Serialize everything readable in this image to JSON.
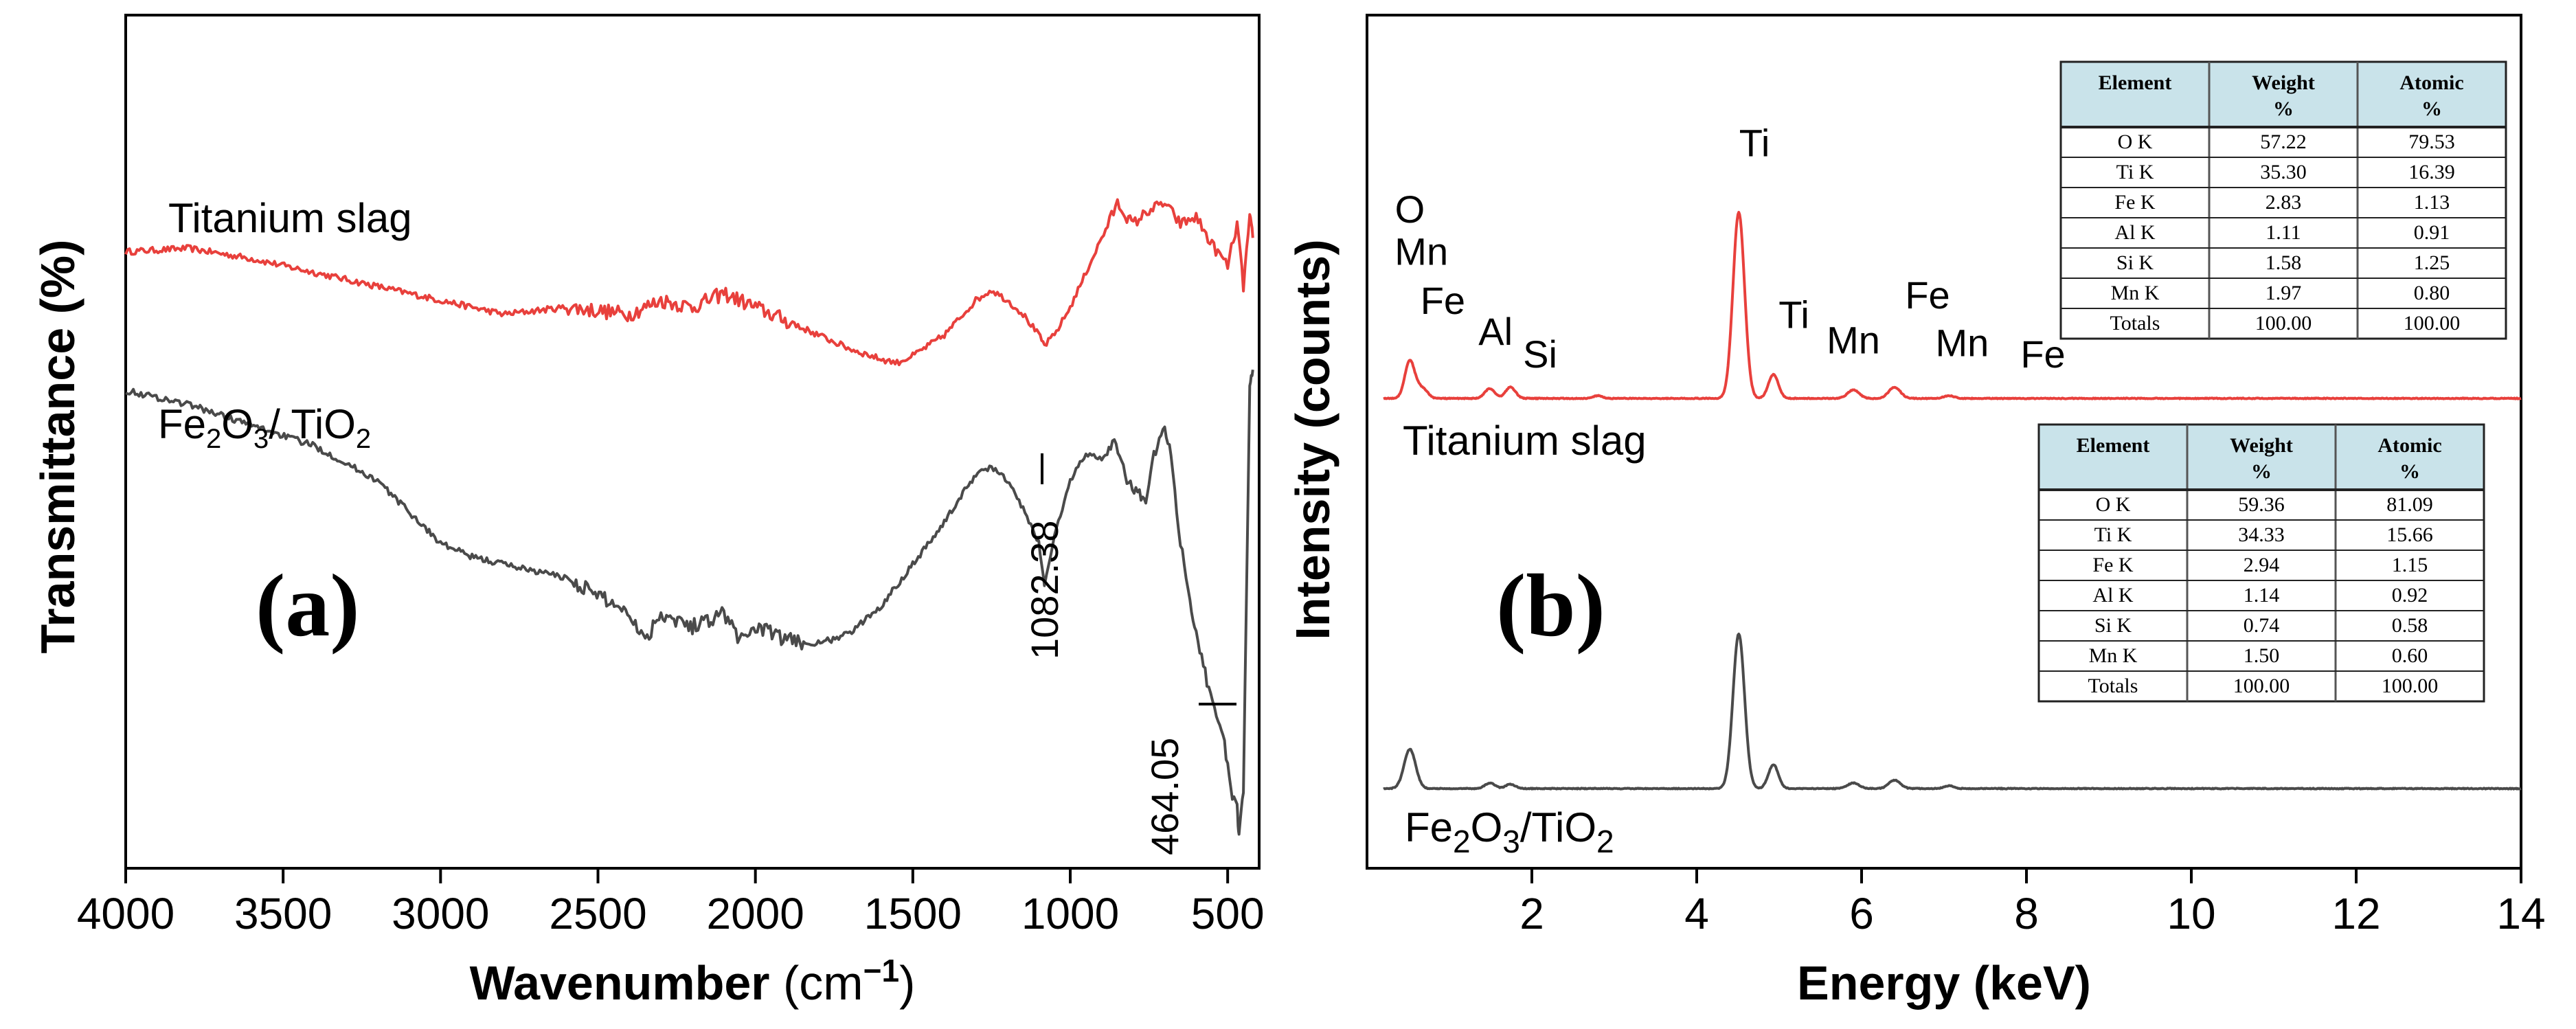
{
  "chart_data": [
    {
      "type": "line",
      "panel_label": "(a)",
      "xlabel": "Wavenumber (cm⁻¹)",
      "xlabel_main": "Wavenumber ",
      "xlabel_unit": "(cm",
      "xlabel_exp": "−1",
      "xlabel_close": ")",
      "ylabel": "Transmittance (%)",
      "xlim": [
        4000,
        400
      ],
      "x_ticks": [
        4000,
        3500,
        3000,
        2500,
        2000,
        1500,
        1000,
        500
      ],
      "tick_labels": [
        "4000",
        "3500",
        "3000",
        "2500",
        "2000",
        "1500",
        "1000",
        "500"
      ],
      "annotations": [
        "1082.38",
        "464.05"
      ],
      "series": [
        {
          "name": "Titanium slag",
          "color": "#e8403c",
          "x": [
            4000,
            3800,
            3600,
            3400,
            3200,
            3000,
            2800,
            2600,
            2400,
            2300,
            2200,
            2100,
            2000,
            1900,
            1800,
            1700,
            1600,
            1550,
            1500,
            1400,
            1300,
            1250,
            1200,
            1150,
            1100,
            1082,
            1050,
            1000,
            950,
            900,
            850,
            820,
            800,
            750,
            700,
            650,
            600,
            550,
            500,
            470,
            450,
            430,
            420
          ],
          "values": [
            85,
            85.5,
            84,
            82,
            80,
            78,
            76,
            77,
            76,
            78,
            77,
            79,
            77,
            75,
            73,
            71,
            69.5,
            69,
            70,
            73,
            78,
            79.5,
            78,
            76,
            73,
            71.5,
            73,
            77,
            82,
            87,
            92,
            90,
            89,
            91,
            92,
            89,
            90,
            86,
            83,
            89,
            80,
            90,
            87
          ]
        },
        {
          "name": "Fe₂O₃/TiO₂",
          "name_main": "Fe",
          "name_sub1": "2",
          "name_mid": "O",
          "name_sub2": "3",
          "name_tail": "/ TiO",
          "name_sub3": "2",
          "color": "#4a4a4a",
          "x": [
            4000,
            3800,
            3600,
            3400,
            3200,
            3000,
            2900,
            2800,
            2600,
            2400,
            2350,
            2300,
            2200,
            2100,
            2050,
            2000,
            1900,
            1800,
            1700,
            1600,
            1500,
            1400,
            1300,
            1250,
            1200,
            1150,
            1100,
            1082,
            1050,
            1000,
            950,
            900,
            860,
            820,
            780,
            760,
            740,
            700,
            680,
            650,
            620,
            600,
            560,
            530,
            510,
            490,
            470,
            464,
            450,
            430,
            420
          ],
          "values": [
            65,
            63,
            60,
            57,
            52,
            43,
            41,
            40,
            38,
            33,
            29,
            33,
            31,
            33,
            29,
            31,
            29,
            28.5,
            30,
            34,
            40,
            46,
            53,
            54,
            52,
            48,
            43,
            37,
            44,
            52,
            56,
            55,
            58,
            52,
            50,
            49,
            55,
            59.5,
            56,
            43,
            35,
            30,
            22,
            18,
            14,
            7,
            5,
            0.5,
            7,
            66,
            68
          ]
        }
      ]
    },
    {
      "type": "line",
      "panel_label": "(b)",
      "xlabel": "Energy (keV)",
      "ylabel": "Intensity (counts)",
      "xlim": [
        0,
        14
      ],
      "x_ticks": [
        2,
        4,
        6,
        8,
        10,
        12,
        14
      ],
      "tick_labels": [
        "2",
        "4",
        "6",
        "8",
        "10",
        "12",
        "14"
      ],
      "series": [
        {
          "name": "Titanium slag",
          "color": "#e8403c",
          "peaks": [
            {
              "x": 0.52,
              "h": 27,
              "w": 0.06
            },
            {
              "x": 0.64,
              "h": 5,
              "w": 0.05
            },
            {
              "x": 0.71,
              "h": 4,
              "w": 0.05
            },
            {
              "x": 1.49,
              "h": 7,
              "w": 0.06
            },
            {
              "x": 1.74,
              "h": 8,
              "w": 0.06
            },
            {
              "x": 2.8,
              "h": 2,
              "w": 0.05
            },
            {
              "x": 4.51,
              "h": 132,
              "w": 0.07
            },
            {
              "x": 4.93,
              "h": 17,
              "w": 0.06
            },
            {
              "x": 5.9,
              "h": 6,
              "w": 0.07
            },
            {
              "x": 6.4,
              "h": 8,
              "w": 0.07
            },
            {
              "x": 7.06,
              "h": 2,
              "w": 0.06
            }
          ],
          "labels": [
            {
              "text": "O",
              "x": 0.52,
              "y": 125
            },
            {
              "text": "Mn",
              "x": 0.66,
              "y": 95
            },
            {
              "text": "Fe",
              "x": 0.92,
              "y": 60
            },
            {
              "text": "Al",
              "x": 1.56,
              "y": 38
            },
            {
              "text": "Si",
              "x": 2.1,
              "y": 22
            },
            {
              "text": "Ti",
              "x": 4.7,
              "y": 172
            },
            {
              "text": "Ti",
              "x": 5.18,
              "y": 50
            },
            {
              "text": "Mn",
              "x": 5.9,
              "y": 32
            },
            {
              "text": "Fe",
              "x": 6.8,
              "y": 64
            },
            {
              "text": "Mn",
              "x": 7.22,
              "y": 30
            },
            {
              "text": "Fe",
              "x": 8.2,
              "y": 22
            }
          ],
          "table": {
            "headers": [
              "Element",
              "Weight %",
              "Atomic %"
            ],
            "rows": [
              [
                "O K",
                "57.22",
                "79.53"
              ],
              [
                "Ti K",
                "35.30",
                "16.39"
              ],
              [
                "Fe K",
                "2.83",
                "1.13"
              ],
              [
                "Al K",
                "1.11",
                "0.91"
              ],
              [
                "Si K",
                "1.58",
                "1.25"
              ],
              [
                "Mn K",
                "1.97",
                "0.80"
              ],
              [
                "Totals",
                "100.00",
                "100.00"
              ]
            ]
          }
        },
        {
          "name": "Fe₂O₃/TiO₂",
          "name_main": "Fe",
          "name_sub1": "2",
          "name_mid": "O",
          "name_sub2": "3",
          "name_tail": "/TiO",
          "name_sub3": "2",
          "color": "#4a4a4a",
          "peaks": [
            {
              "x": 0.52,
              "h": 28,
              "w": 0.07
            },
            {
              "x": 1.49,
              "h": 4,
              "w": 0.06
            },
            {
              "x": 1.74,
              "h": 3,
              "w": 0.06
            },
            {
              "x": 4.51,
              "h": 110,
              "w": 0.07
            },
            {
              "x": 4.93,
              "h": 17,
              "w": 0.06
            },
            {
              "x": 5.9,
              "h": 4,
              "w": 0.07
            },
            {
              "x": 6.4,
              "h": 6,
              "w": 0.07
            },
            {
              "x": 7.06,
              "h": 2,
              "w": 0.06
            }
          ],
          "table": {
            "headers": [
              "Element",
              "Weight %",
              "Atomic %"
            ],
            "rows": [
              [
                "O K",
                "59.36",
                "81.09"
              ],
              [
                "Ti K",
                "34.33",
                "15.66"
              ],
              [
                "Fe K",
                "2.94",
                "1.15"
              ],
              [
                "Al K",
                "1.14",
                "0.92"
              ],
              [
                "Si K",
                "0.74",
                "0.58"
              ],
              [
                "Mn K",
                "1.50",
                "0.60"
              ],
              [
                "Totals",
                "100.00",
                "100.00"
              ]
            ]
          }
        }
      ]
    }
  ]
}
